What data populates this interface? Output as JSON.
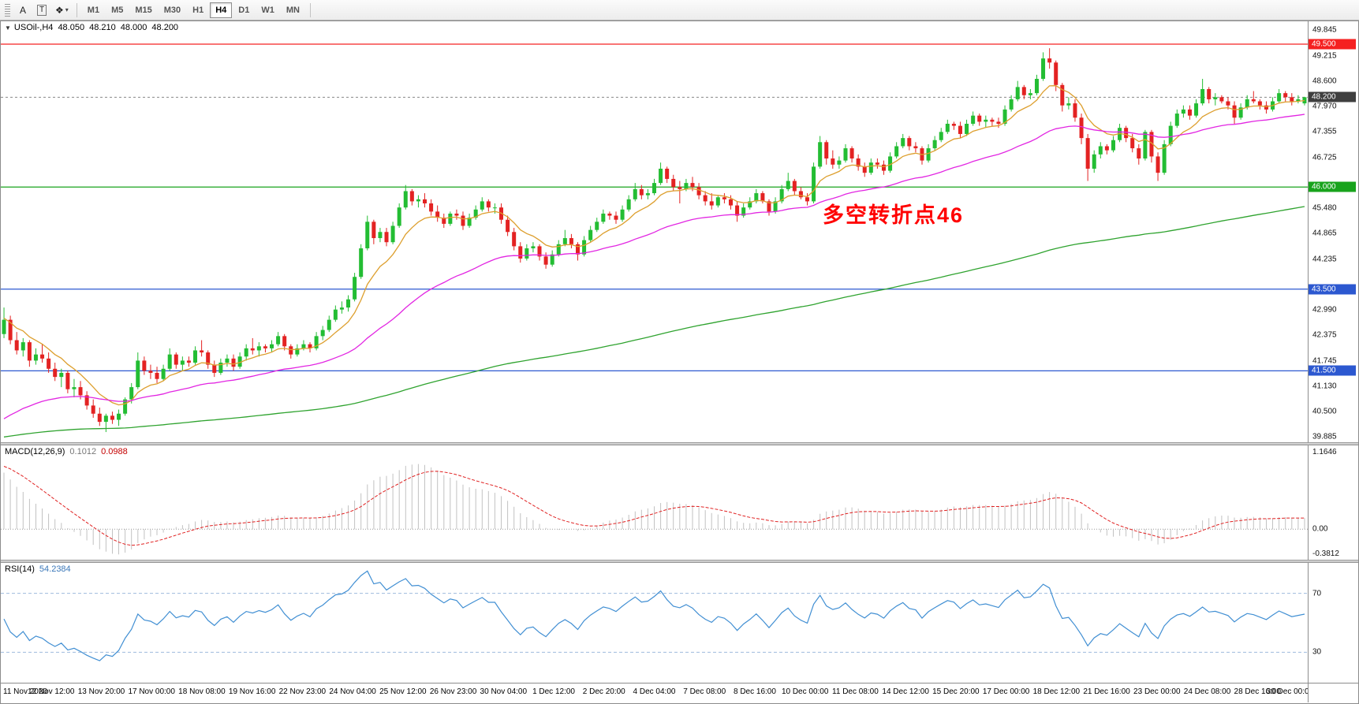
{
  "toolbar": {
    "tools": [
      {
        "label": "A",
        "name": "cursor-tool"
      },
      {
        "label": "T",
        "name": "text-tool"
      },
      {
        "label": "❖",
        "caret": "▾",
        "name": "shapes-tool"
      }
    ],
    "timeframes": [
      "M1",
      "M5",
      "M15",
      "M30",
      "H1",
      "H4",
      "D1",
      "W1",
      "MN"
    ],
    "active_timeframe": "H4"
  },
  "chart": {
    "collapse_icon": "▼",
    "symbol_timeframe": "USOil-,H4",
    "open": "48.050",
    "high": "48.210",
    "low": "48.000",
    "close": "48.200"
  },
  "indicators": {
    "macd": {
      "label": "MACD(12,26,9)",
      "value_main": "0.1012",
      "value_signal": "0.0988",
      "scale_labels": [
        "1.1646",
        "0.00",
        "-0.3812"
      ]
    },
    "rsi": {
      "label": "RSI(14)",
      "value": "54.2384",
      "scale_labels": [
        "70",
        "30"
      ]
    }
  },
  "annotation": {
    "text": "多空转折点46",
    "color": "#ff0000"
  },
  "price_scale": {
    "ticks": [
      "49.845",
      "49.215",
      "48.600",
      "47.970",
      "47.355",
      "46.725",
      "46.110",
      "45.480",
      "44.865",
      "44.235",
      "43.620",
      "42.990",
      "42.375",
      "41.745",
      "41.130",
      "40.500",
      "39.885"
    ],
    "badges": [
      {
        "label": "49.500",
        "price": 49.5,
        "color": "#f52020"
      },
      {
        "label": "48.200",
        "price": 48.2,
        "color": "#3f3f3f"
      },
      {
        "label": "46.000",
        "price": 46.0,
        "color": "#18a31c"
      },
      {
        "label": "43.500",
        "price": 43.5,
        "color": "#2c58d0"
      },
      {
        "label": "41.500",
        "price": 41.5,
        "color": "#2c58d0"
      }
    ]
  },
  "time_axis": [
    "11 Nov 2020",
    "12 Nov 12:00",
    "13 Nov 20:00",
    "17 Nov 00:00",
    "18 Nov 08:00",
    "19 Nov 16:00",
    "22 Nov 23:00",
    "24 Nov 04:00",
    "25 Nov 12:00",
    "26 Nov 23:00",
    "30 Nov 04:00",
    "1 Dec 12:00",
    "2 Dec 20:00",
    "4 Dec 04:00",
    "7 Dec 08:00",
    "8 Dec 16:00",
    "10 Dec 00:00",
    "11 Dec 08:00",
    "14 Dec 12:00",
    "15 Dec 20:00",
    "17 Dec 00:00",
    "18 Dec 12:00",
    "21 Dec 16:00",
    "23 Dec 00:00",
    "24 Dec 08:00",
    "28 Dec 16:00",
    "30 Dec 00:00"
  ],
  "chart_data": {
    "type": "candlestick",
    "symbol": "USOil-",
    "timeframe": "H4",
    "ylim": [
      39.75,
      50.06
    ],
    "current_price": 48.2,
    "colors": {
      "bull": "#23bd33",
      "bear": "#e32222"
    },
    "hlines": [
      {
        "price": 49.5,
        "color": "#f52020"
      },
      {
        "price": 46.0,
        "color": "#18a31c"
      },
      {
        "price": 43.5,
        "color": "#2c58d0"
      },
      {
        "price": 41.5,
        "color": "#2c58d0"
      }
    ],
    "moving_averages": [
      {
        "name": "fast",
        "period": 9,
        "seed": 42.8,
        "color": "#dd9f2e"
      },
      {
        "name": "medium",
        "period": 40,
        "seed": 40.2,
        "color": "#e226e2"
      },
      {
        "name": "slow",
        "period": 200,
        "seed": 39.85,
        "color": "#2fa32f"
      }
    ],
    "macd": {
      "fast": 12,
      "slow": 26,
      "signal": 9,
      "seed_fast": 42.75,
      "seed_slow": 41.85,
      "seed_signal": 0.95,
      "ylim": [
        -0.3812,
        1.1646
      ],
      "hist_color": "#c2c2c2",
      "signal_color": "#e02020"
    },
    "rsi": {
      "period": 14,
      "seed_avg_gain": 0.1,
      "seed_avg_loss": 0.09,
      "levels": [
        70,
        30
      ],
      "ylim": [
        12,
        88
      ],
      "line_color": "#418fd3",
      "level_color": "#9fbbdd"
    },
    "candles": [
      [
        42.4,
        43.05,
        42.3,
        42.75
      ],
      [
        42.75,
        42.85,
        42.15,
        42.25
      ],
      [
        42.25,
        42.45,
        41.9,
        42.0
      ],
      [
        42.0,
        42.3,
        41.85,
        42.2
      ],
      [
        42.2,
        42.25,
        41.6,
        41.75
      ],
      [
        41.75,
        42.05,
        41.65,
        41.9
      ],
      [
        41.9,
        42.15,
        41.7,
        41.8
      ],
      [
        41.8,
        41.95,
        41.45,
        41.55
      ],
      [
        41.55,
        41.7,
        41.25,
        41.35
      ],
      [
        41.35,
        41.55,
        41.1,
        41.45
      ],
      [
        41.45,
        41.5,
        40.95,
        41.05
      ],
      [
        41.05,
        41.3,
        40.85,
        41.1
      ],
      [
        41.1,
        41.25,
        40.8,
        40.9
      ],
      [
        40.9,
        41.0,
        40.55,
        40.65
      ],
      [
        40.65,
        40.8,
        40.35,
        40.45
      ],
      [
        40.45,
        40.6,
        40.15,
        40.25
      ],
      [
        40.25,
        40.45,
        40.0,
        40.4
      ],
      [
        40.4,
        40.5,
        40.2,
        40.3
      ],
      [
        40.3,
        40.55,
        40.15,
        40.45
      ],
      [
        40.45,
        40.85,
        40.4,
        40.8
      ],
      [
        40.8,
        41.2,
        40.7,
        41.1
      ],
      [
        41.1,
        41.95,
        41.05,
        41.75
      ],
      [
        41.75,
        41.85,
        41.4,
        41.5
      ],
      [
        41.5,
        41.65,
        41.3,
        41.45
      ],
      [
        41.45,
        41.6,
        41.2,
        41.3
      ],
      [
        41.3,
        41.65,
        41.25,
        41.55
      ],
      [
        41.55,
        42.05,
        41.5,
        41.9
      ],
      [
        41.9,
        41.95,
        41.55,
        41.65
      ],
      [
        41.65,
        41.85,
        41.5,
        41.75
      ],
      [
        41.75,
        41.85,
        41.6,
        41.7
      ],
      [
        41.7,
        42.1,
        41.65,
        42.0
      ],
      [
        42.0,
        42.25,
        41.85,
        41.95
      ],
      [
        41.95,
        42.0,
        41.55,
        41.65
      ],
      [
        41.65,
        41.75,
        41.35,
        41.45
      ],
      [
        41.45,
        41.8,
        41.4,
        41.7
      ],
      [
        41.7,
        41.9,
        41.6,
        41.8
      ],
      [
        41.8,
        41.9,
        41.5,
        41.6
      ],
      [
        41.6,
        41.95,
        41.55,
        41.85
      ],
      [
        41.85,
        42.15,
        41.75,
        42.05
      ],
      [
        42.05,
        42.3,
        41.9,
        42.0
      ],
      [
        42.0,
        42.2,
        41.85,
        42.1
      ],
      [
        42.1,
        42.15,
        41.95,
        42.05
      ],
      [
        42.05,
        42.25,
        41.95,
        42.15
      ],
      [
        42.15,
        42.45,
        42.1,
        42.35
      ],
      [
        42.35,
        42.4,
        42.0,
        42.1
      ],
      [
        42.1,
        42.15,
        41.8,
        41.9
      ],
      [
        41.9,
        42.15,
        41.85,
        42.05
      ],
      [
        42.05,
        42.25,
        42.0,
        42.15
      ],
      [
        42.15,
        42.2,
        41.95,
        42.05
      ],
      [
        42.05,
        42.45,
        42.0,
        42.35
      ],
      [
        42.35,
        42.6,
        42.25,
        42.5
      ],
      [
        42.5,
        42.85,
        42.45,
        42.75
      ],
      [
        42.75,
        43.1,
        42.7,
        43.0
      ],
      [
        43.0,
        43.2,
        42.9,
        43.05
      ],
      [
        43.05,
        43.35,
        42.95,
        43.25
      ],
      [
        43.25,
        43.9,
        43.2,
        43.8
      ],
      [
        43.8,
        44.6,
        43.75,
        44.5
      ],
      [
        44.5,
        45.3,
        44.45,
        45.15
      ],
      [
        45.15,
        45.2,
        44.6,
        44.75
      ],
      [
        44.75,
        45.0,
        44.65,
        44.9
      ],
      [
        44.9,
        45.0,
        44.55,
        44.65
      ],
      [
        44.65,
        45.15,
        44.6,
        45.05
      ],
      [
        45.05,
        45.6,
        45.0,
        45.5
      ],
      [
        45.5,
        46.05,
        45.45,
        45.9
      ],
      [
        45.9,
        45.95,
        45.55,
        45.65
      ],
      [
        45.65,
        45.8,
        45.5,
        45.7
      ],
      [
        45.7,
        45.85,
        45.5,
        45.6
      ],
      [
        45.6,
        45.7,
        45.3,
        45.4
      ],
      [
        45.4,
        45.55,
        45.15,
        45.25
      ],
      [
        45.25,
        45.35,
        45.0,
        45.1
      ],
      [
        45.1,
        45.4,
        45.05,
        45.35
      ],
      [
        45.35,
        45.45,
        45.2,
        45.3
      ],
      [
        45.3,
        45.4,
        44.95,
        45.05
      ],
      [
        45.05,
        45.35,
        45.0,
        45.25
      ],
      [
        45.25,
        45.55,
        45.2,
        45.45
      ],
      [
        45.45,
        45.75,
        45.4,
        45.65
      ],
      [
        45.65,
        45.7,
        45.4,
        45.5
      ],
      [
        45.5,
        45.6,
        45.35,
        45.5
      ],
      [
        45.5,
        45.6,
        45.1,
        45.2
      ],
      [
        45.2,
        45.3,
        44.8,
        44.9
      ],
      [
        44.9,
        45.0,
        44.45,
        44.55
      ],
      [
        44.55,
        44.65,
        44.15,
        44.25
      ],
      [
        44.25,
        44.6,
        44.2,
        44.5
      ],
      [
        44.5,
        44.65,
        44.4,
        44.55
      ],
      [
        44.55,
        44.6,
        44.2,
        44.3
      ],
      [
        44.3,
        44.4,
        44.0,
        44.1
      ],
      [
        44.1,
        44.45,
        44.05,
        44.35
      ],
      [
        44.35,
        44.7,
        44.3,
        44.6
      ],
      [
        44.6,
        44.95,
        44.55,
        44.75
      ],
      [
        44.75,
        44.85,
        44.5,
        44.6
      ],
      [
        44.6,
        44.65,
        44.2,
        44.35
      ],
      [
        44.35,
        44.8,
        44.3,
        44.7
      ],
      [
        44.7,
        45.05,
        44.65,
        44.95
      ],
      [
        44.95,
        45.25,
        44.9,
        45.15
      ],
      [
        45.15,
        45.45,
        45.1,
        45.35
      ],
      [
        45.35,
        45.4,
        45.2,
        45.3
      ],
      [
        45.3,
        45.4,
        45.1,
        45.2
      ],
      [
        45.2,
        45.55,
        45.15,
        45.45
      ],
      [
        45.45,
        45.8,
        45.4,
        45.7
      ],
      [
        45.7,
        46.1,
        45.65,
        45.95
      ],
      [
        45.95,
        46.05,
        45.7,
        45.8
      ],
      [
        45.8,
        45.95,
        45.7,
        45.85
      ],
      [
        45.85,
        46.2,
        45.8,
        46.1
      ],
      [
        46.1,
        46.6,
        46.05,
        46.45
      ],
      [
        46.45,
        46.5,
        46.1,
        46.2
      ],
      [
        46.2,
        46.3,
        45.9,
        46.0
      ],
      [
        46.0,
        46.15,
        45.6,
        45.95
      ],
      [
        45.95,
        46.2,
        45.9,
        46.1
      ],
      [
        46.1,
        46.25,
        45.9,
        46.0
      ],
      [
        46.0,
        46.1,
        45.7,
        45.8
      ],
      [
        45.8,
        45.9,
        45.55,
        45.65
      ],
      [
        45.65,
        45.85,
        45.45,
        45.55
      ],
      [
        45.55,
        45.8,
        45.5,
        45.75
      ],
      [
        45.75,
        45.85,
        45.6,
        45.7
      ],
      [
        45.7,
        45.8,
        45.45,
        45.55
      ],
      [
        45.55,
        45.65,
        45.15,
        45.3
      ],
      [
        45.3,
        45.6,
        45.25,
        45.5
      ],
      [
        45.5,
        45.75,
        45.45,
        45.65
      ],
      [
        45.65,
        45.95,
        45.6,
        45.85
      ],
      [
        45.85,
        45.9,
        45.6,
        45.65
      ],
      [
        45.65,
        45.7,
        45.3,
        45.4
      ],
      [
        45.4,
        45.75,
        45.35,
        45.65
      ],
      [
        45.65,
        46.05,
        45.6,
        45.95
      ],
      [
        45.95,
        46.35,
        45.9,
        46.15
      ],
      [
        46.15,
        46.2,
        45.8,
        45.9
      ],
      [
        45.9,
        46.0,
        45.7,
        45.75
      ],
      [
        45.75,
        45.85,
        45.55,
        45.65
      ],
      [
        45.65,
        46.6,
        45.6,
        46.5
      ],
      [
        46.5,
        47.25,
        46.45,
        47.1
      ],
      [
        47.1,
        47.15,
        46.55,
        46.7
      ],
      [
        46.7,
        46.9,
        46.45,
        46.55
      ],
      [
        46.55,
        46.75,
        46.45,
        46.65
      ],
      [
        46.65,
        47.05,
        46.6,
        46.95
      ],
      [
        46.95,
        47.0,
        46.6,
        46.7
      ],
      [
        46.7,
        46.8,
        46.4,
        46.5
      ],
      [
        46.5,
        46.6,
        46.25,
        46.35
      ],
      [
        46.35,
        46.7,
        46.3,
        46.6
      ],
      [
        46.6,
        46.7,
        46.45,
        46.55
      ],
      [
        46.55,
        46.65,
        46.3,
        46.4
      ],
      [
        46.4,
        46.85,
        46.35,
        46.75
      ],
      [
        46.75,
        47.1,
        46.7,
        47.0
      ],
      [
        47.0,
        47.3,
        46.95,
        47.2
      ],
      [
        47.2,
        47.25,
        46.9,
        47.0
      ],
      [
        47.0,
        47.1,
        46.85,
        46.95
      ],
      [
        46.95,
        47.0,
        46.55,
        46.65
      ],
      [
        46.65,
        47.05,
        46.6,
        46.95
      ],
      [
        46.95,
        47.25,
        46.9,
        47.15
      ],
      [
        47.15,
        47.45,
        47.1,
        47.35
      ],
      [
        47.35,
        47.65,
        47.3,
        47.55
      ],
      [
        47.55,
        47.6,
        47.4,
        47.5
      ],
      [
        47.5,
        47.6,
        47.2,
        47.3
      ],
      [
        47.3,
        47.65,
        47.25,
        47.55
      ],
      [
        47.55,
        47.85,
        47.5,
        47.75
      ],
      [
        47.75,
        47.8,
        47.5,
        47.6
      ],
      [
        47.6,
        47.75,
        47.45,
        47.65
      ],
      [
        47.65,
        47.7,
        47.5,
        47.6
      ],
      [
        47.6,
        47.7,
        47.45,
        47.55
      ],
      [
        47.55,
        48.0,
        47.5,
        47.9
      ],
      [
        47.9,
        48.25,
        47.85,
        48.15
      ],
      [
        48.15,
        48.6,
        48.1,
        48.45
      ],
      [
        48.45,
        48.5,
        48.15,
        48.25
      ],
      [
        48.25,
        48.4,
        48.15,
        48.3
      ],
      [
        48.3,
        48.75,
        48.25,
        48.65
      ],
      [
        48.65,
        49.3,
        48.6,
        49.15
      ],
      [
        49.15,
        49.4,
        48.9,
        49.05
      ],
      [
        49.05,
        49.1,
        48.35,
        48.5
      ],
      [
        48.5,
        48.55,
        47.85,
        48.0
      ],
      [
        48.0,
        48.2,
        47.9,
        48.05
      ],
      [
        48.05,
        48.15,
        47.6,
        47.7
      ],
      [
        47.7,
        47.8,
        47.05,
        47.2
      ],
      [
        47.2,
        47.3,
        46.15,
        46.45
      ],
      [
        46.45,
        46.9,
        46.35,
        46.8
      ],
      [
        46.8,
        47.1,
        46.7,
        47.0
      ],
      [
        47.0,
        47.05,
        46.8,
        46.9
      ],
      [
        46.9,
        47.25,
        46.85,
        47.15
      ],
      [
        47.15,
        47.55,
        47.1,
        47.45
      ],
      [
        47.45,
        47.5,
        47.1,
        47.2
      ],
      [
        47.2,
        47.3,
        46.85,
        46.95
      ],
      [
        46.95,
        47.05,
        46.55,
        46.7
      ],
      [
        46.7,
        47.4,
        46.65,
        47.35
      ],
      [
        47.35,
        47.4,
        46.6,
        46.75
      ],
      [
        46.75,
        46.85,
        46.15,
        46.35
      ],
      [
        46.35,
        47.15,
        46.3,
        47.05
      ],
      [
        47.05,
        47.6,
        47.0,
        47.5
      ],
      [
        47.5,
        47.9,
        47.45,
        47.8
      ],
      [
        47.8,
        48.0,
        47.7,
        47.9
      ],
      [
        47.9,
        48.0,
        47.65,
        47.75
      ],
      [
        47.75,
        48.15,
        47.7,
        48.05
      ],
      [
        48.05,
        48.65,
        48.0,
        48.4
      ],
      [
        48.4,
        48.45,
        48.05,
        48.15
      ],
      [
        48.15,
        48.3,
        48.0,
        48.2
      ],
      [
        48.2,
        48.25,
        48.05,
        48.1
      ],
      [
        48.1,
        48.2,
        47.9,
        48.0
      ],
      [
        48.0,
        48.1,
        47.55,
        47.7
      ],
      [
        47.7,
        48.05,
        47.65,
        47.95
      ],
      [
        47.95,
        48.25,
        47.9,
        48.15
      ],
      [
        48.15,
        48.35,
        48.05,
        48.1
      ],
      [
        48.1,
        48.15,
        47.9,
        48.0
      ],
      [
        48.0,
        48.1,
        47.8,
        47.9
      ],
      [
        47.9,
        48.2,
        47.85,
        48.1
      ],
      [
        48.1,
        48.4,
        48.05,
        48.3
      ],
      [
        48.3,
        48.35,
        48.1,
        48.2
      ],
      [
        48.2,
        48.3,
        48.0,
        48.1
      ],
      [
        48.1,
        48.25,
        48.05,
        48.15
      ],
      [
        48.05,
        48.21,
        48.0,
        48.2
      ]
    ]
  }
}
